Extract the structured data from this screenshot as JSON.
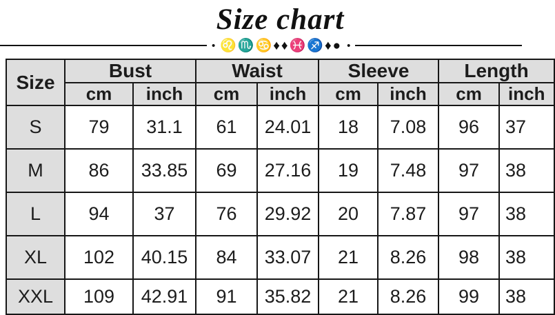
{
  "title": "Size chart",
  "divider": {
    "dot": "•",
    "symbols": "♌♏♋♦♦♓♐♦●"
  },
  "table": {
    "corner_header": "Size",
    "groups": [
      {
        "label": "Bust"
      },
      {
        "label": "Waist"
      },
      {
        "label": "Sleeve"
      },
      {
        "label": "Length"
      }
    ],
    "unit_headers": [
      "cm",
      "inch",
      "cm",
      "inch",
      "cm",
      "inch",
      "cm",
      "inch"
    ],
    "rows": [
      {
        "size": "S",
        "values": [
          "79",
          "31.1",
          "61",
          "24.01",
          "18",
          "7.08",
          "96",
          "37"
        ]
      },
      {
        "size": "M",
        "values": [
          "86",
          "33.85",
          "69",
          "27.16",
          "19",
          "7.48",
          "97",
          "38"
        ]
      },
      {
        "size": "L",
        "values": [
          "94",
          "37",
          "76",
          "29.92",
          "20",
          "7.87",
          "97",
          "38"
        ]
      },
      {
        "size": "XL",
        "values": [
          "102",
          "40.15",
          "84",
          "33.07",
          "21",
          "8.26",
          "98",
          "38"
        ]
      },
      {
        "size": "XXL",
        "values": [
          "109",
          "42.91",
          "91",
          "35.82",
          "21",
          "8.26",
          "99",
          "38"
        ]
      }
    ]
  },
  "colors": {
    "header_bg": "#dedede",
    "border": "#161616",
    "text": "#1c1c1c"
  }
}
